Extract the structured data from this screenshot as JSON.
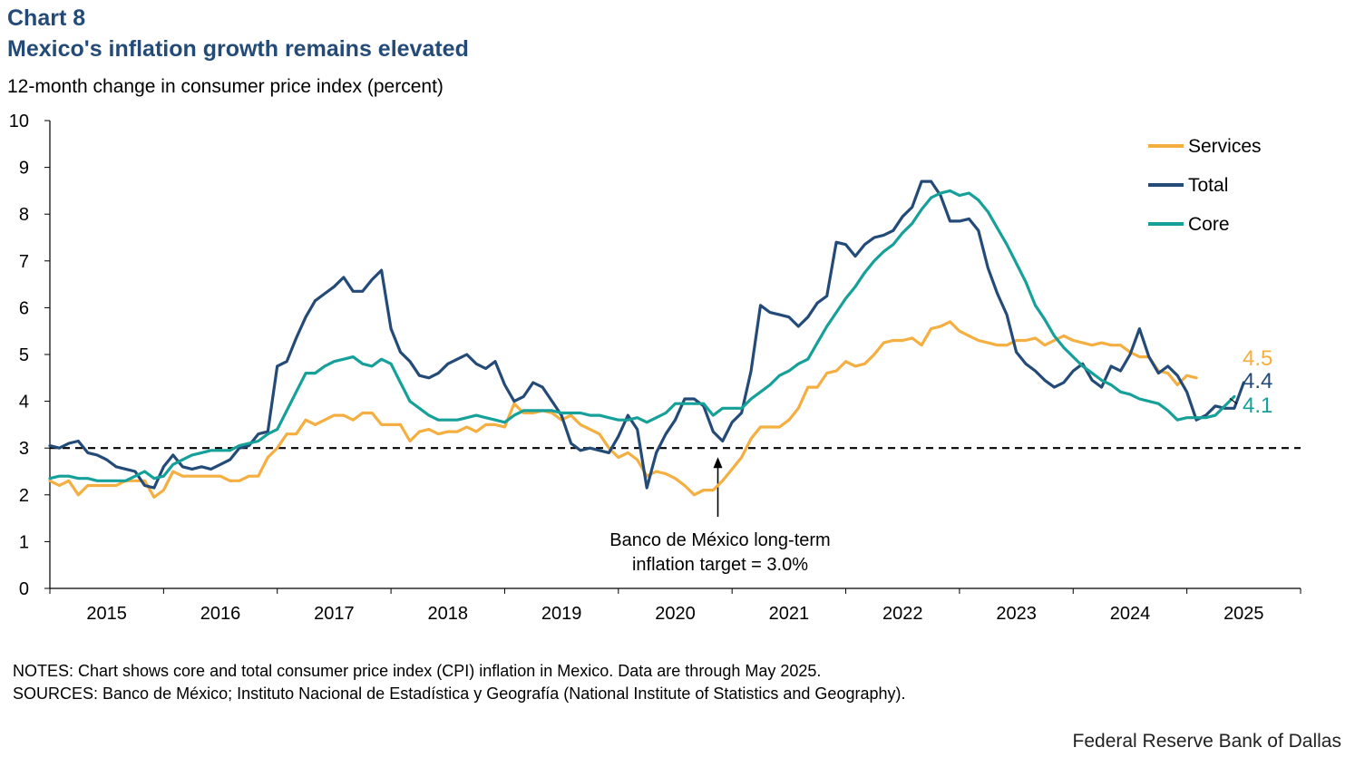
{
  "header": {
    "chart_number": "Chart 8",
    "title": "Mexico's inflation growth remains elevated",
    "subtitle": "12-month change in consumer price index (percent)"
  },
  "notes": {
    "notes_line": "NOTES: Chart shows core and total consumer price index (CPI) inflation in Mexico. Data are through  May 2025.",
    "sources_line": "SOURCES: Banco de México; Instituto Nacional de Estadística y Geografía (National Institute  of Statistics and Geography)."
  },
  "credit": "Federal Reserve Bank of Dallas",
  "colors": {
    "services": "#f5ae40",
    "total": "#244b78",
    "core": "#16a09a",
    "title": "#244b78",
    "axis": "#000000"
  },
  "chart_data": {
    "type": "line",
    "title": "Mexico's inflation growth remains elevated",
    "ylabel": "12-month change in consumer price index (percent)",
    "xlabel": "",
    "ylim": [
      0,
      10
    ],
    "yticks": [
      0,
      1,
      2,
      3,
      4,
      5,
      6,
      7,
      8,
      9,
      10
    ],
    "xlim": [
      0,
      132
    ],
    "x_unit": "months since Jan 2015 (Jan 2015 = 0)",
    "year_labels": [
      "2015",
      "2016",
      "2017",
      "2018",
      "2019",
      "2020",
      "2021",
      "2022",
      "2023",
      "2024",
      "2025"
    ],
    "grid": false,
    "legend_position": "top-right",
    "reference_line": {
      "value": 3.0,
      "style": "dashed",
      "annotation": [
        "Banco de México  long-term",
        "inflation target = 3.0%"
      ],
      "arrow_x": 70.5
    },
    "end_labels": [
      {
        "series": "Services",
        "text": "4.5"
      },
      {
        "series": "Total",
        "text": "4.4"
      },
      {
        "series": "Core",
        "text": "4.1"
      }
    ],
    "series": [
      {
        "name": "Services",
        "color_key": "services",
        "values": [
          2.3,
          2.2,
          2.3,
          2.0,
          2.2,
          2.2,
          2.2,
          2.2,
          2.3,
          2.3,
          2.3,
          1.95,
          2.1,
          2.5,
          2.4,
          2.4,
          2.4,
          2.4,
          2.4,
          2.3,
          2.3,
          2.4,
          2.4,
          2.8,
          3.0,
          3.3,
          3.3,
          3.6,
          3.5,
          3.6,
          3.7,
          3.7,
          3.6,
          3.75,
          3.75,
          3.5,
          3.5,
          3.5,
          3.15,
          3.35,
          3.4,
          3.3,
          3.35,
          3.35,
          3.45,
          3.35,
          3.5,
          3.5,
          3.45,
          3.95,
          3.75,
          3.75,
          3.8,
          3.75,
          3.6,
          3.7,
          3.5,
          3.4,
          3.3,
          3.0,
          2.8,
          2.9,
          2.75,
          2.4,
          2.5,
          2.45,
          2.35,
          2.2,
          2.0,
          2.1,
          2.1,
          2.3,
          2.55,
          2.8,
          3.2,
          3.45,
          3.45,
          3.45,
          3.6,
          3.85,
          4.3,
          4.3,
          4.6,
          4.65,
          4.85,
          4.75,
          4.8,
          5.0,
          5.25,
          5.3,
          5.3,
          5.35,
          5.2,
          5.55,
          5.6,
          5.7,
          5.5,
          5.4,
          5.3,
          5.25,
          5.2,
          5.2,
          5.3,
          5.3,
          5.35,
          5.2,
          5.3,
          5.4,
          5.3,
          5.25,
          5.2,
          5.25,
          5.2,
          5.2,
          5.05,
          4.95,
          4.95,
          4.65,
          4.6,
          4.35,
          4.55,
          4.5
        ]
      },
      {
        "name": "Total",
        "color_key": "total",
        "values": [
          3.05,
          3.0,
          3.1,
          3.15,
          2.9,
          2.85,
          2.75,
          2.6,
          2.55,
          2.5,
          2.2,
          2.15,
          2.6,
          2.85,
          2.6,
          2.55,
          2.6,
          2.55,
          2.65,
          2.75,
          3.0,
          3.05,
          3.3,
          3.35,
          4.75,
          4.85,
          5.35,
          5.8,
          6.15,
          6.3,
          6.45,
          6.65,
          6.35,
          6.35,
          6.6,
          6.8,
          5.55,
          5.05,
          4.85,
          4.55,
          4.5,
          4.6,
          4.8,
          4.9,
          5.0,
          4.8,
          4.7,
          4.85,
          4.35,
          4.0,
          4.1,
          4.4,
          4.3,
          4.0,
          3.7,
          3.1,
          2.95,
          3.0,
          2.95,
          2.9,
          3.25,
          3.7,
          3.4,
          2.15,
          2.9,
          3.3,
          3.6,
          4.05,
          4.05,
          3.9,
          3.35,
          3.15,
          3.55,
          3.75,
          4.65,
          6.05,
          5.9,
          5.85,
          5.8,
          5.6,
          5.8,
          6.1,
          6.25,
          7.4,
          7.35,
          7.1,
          7.35,
          7.5,
          7.55,
          7.65,
          7.95,
          8.15,
          8.7,
          8.7,
          8.4,
          7.85,
          7.85,
          7.9,
          7.65,
          6.85,
          6.3,
          5.85,
          5.05,
          4.8,
          4.65,
          4.45,
          4.3,
          4.4,
          4.65,
          4.8,
          4.45,
          4.3,
          4.75,
          4.65,
          5.0,
          5.55,
          4.95,
          4.6,
          4.75,
          4.55,
          4.2,
          3.6,
          3.7,
          3.9,
          3.85,
          3.85,
          4.4
        ]
      },
      {
        "name": "Core",
        "color_key": "core",
        "values": [
          2.35,
          2.4,
          2.4,
          2.35,
          2.35,
          2.3,
          2.3,
          2.3,
          2.3,
          2.4,
          2.5,
          2.35,
          2.4,
          2.65,
          2.75,
          2.85,
          2.9,
          2.95,
          2.95,
          2.95,
          3.05,
          3.1,
          3.15,
          3.3,
          3.4,
          3.8,
          4.2,
          4.6,
          4.6,
          4.75,
          4.85,
          4.9,
          4.95,
          4.8,
          4.75,
          4.9,
          4.8,
          4.4,
          4.0,
          3.85,
          3.7,
          3.6,
          3.6,
          3.6,
          3.65,
          3.7,
          3.65,
          3.6,
          3.55,
          3.7,
          3.8,
          3.8,
          3.8,
          3.8,
          3.75,
          3.75,
          3.75,
          3.7,
          3.7,
          3.65,
          3.6,
          3.6,
          3.65,
          3.55,
          3.65,
          3.75,
          3.95,
          3.95,
          3.95,
          3.95,
          3.7,
          3.85,
          3.85,
          3.85,
          4.05,
          4.2,
          4.35,
          4.55,
          4.65,
          4.8,
          4.9,
          5.25,
          5.6,
          5.9,
          6.2,
          6.45,
          6.75,
          7.0,
          7.2,
          7.35,
          7.6,
          7.8,
          8.1,
          8.35,
          8.45,
          8.5,
          8.4,
          8.45,
          8.3,
          8.05,
          7.7,
          7.35,
          6.95,
          6.55,
          6.05,
          5.75,
          5.4,
          5.15,
          4.95,
          4.75,
          4.6,
          4.45,
          4.35,
          4.2,
          4.15,
          4.05,
          4.0,
          3.95,
          3.8,
          3.6,
          3.65,
          3.65,
          3.65,
          3.7,
          3.9,
          4.1
        ]
      }
    ]
  }
}
